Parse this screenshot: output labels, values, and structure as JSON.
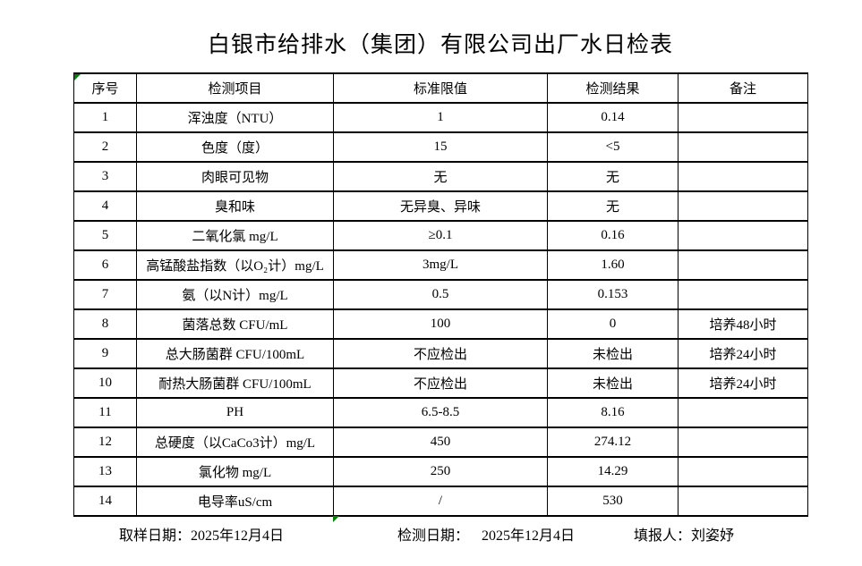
{
  "title": "白银市给排水（集团）有限公司出厂水日检表",
  "table": {
    "headers": [
      "序号",
      "检测项目",
      "标准限值",
      "检测结果",
      "备注"
    ],
    "rows": [
      {
        "no": "1",
        "item": "浑浊度（NTU）",
        "limit": "1",
        "result": "0.14",
        "note": ""
      },
      {
        "no": "2",
        "item": "色度（度）",
        "limit": "15",
        "result": "<5",
        "note": ""
      },
      {
        "no": "3",
        "item": "肉眼可见物",
        "limit": "无",
        "result": "无",
        "note": ""
      },
      {
        "no": "4",
        "item": "臭和味",
        "limit": "无异臭、异味",
        "result": "无",
        "note": ""
      },
      {
        "no": "5",
        "item": "二氧化氯 mg/L",
        "limit": "≥0.1",
        "result": "0.16",
        "note": ""
      },
      {
        "no": "6",
        "item": "高锰酸盐指数（以O₂计）mg/L",
        "limit": "3mg/L",
        "result": "1.60",
        "note": ""
      },
      {
        "no": "7",
        "item": "氨（以N计）mg/L",
        "limit": "0.5",
        "result": "0.153",
        "note": ""
      },
      {
        "no": "8",
        "item": "菌落总数 CFU/mL",
        "limit": "100",
        "result": "0",
        "note": "培养48小时"
      },
      {
        "no": "9",
        "item": "总大肠菌群 CFU/100mL",
        "limit": "不应检出",
        "result": "未检出",
        "note": "培养24小时"
      },
      {
        "no": "10",
        "item": "耐热大肠菌群 CFU/100mL",
        "limit": "不应检出",
        "result": "未检出",
        "note": "培养24小时"
      },
      {
        "no": "11",
        "item": "PH",
        "limit": "6.5-8.5",
        "result": "8.16",
        "note": ""
      },
      {
        "no": "12",
        "item": "总硬度（以CaCo3计）mg/L",
        "limit": "450",
        "result": "274.12",
        "note": ""
      },
      {
        "no": "13",
        "item": "氯化物 mg/L",
        "limit": "250",
        "result": "14.29",
        "note": ""
      },
      {
        "no": "14",
        "item": "电导率uS/cm",
        "limit": "/",
        "result": "530",
        "note": ""
      }
    ]
  },
  "footer": {
    "sample_date_label": "取样日期：",
    "sample_date": "2025年12月4日",
    "test_date_label": "检测日期：",
    "test_date": "2025年12月4日",
    "reporter_label": "填报人：",
    "reporter": "刘姿妤"
  },
  "colors": {
    "text": "#000000",
    "border": "#000000",
    "marker_green": "#008000",
    "background": "#ffffff"
  },
  "icons": {
    "corner_indicator": "excel-green-corner-triangle",
    "below_table_indicator": "excel-green-corner-triangle"
  }
}
